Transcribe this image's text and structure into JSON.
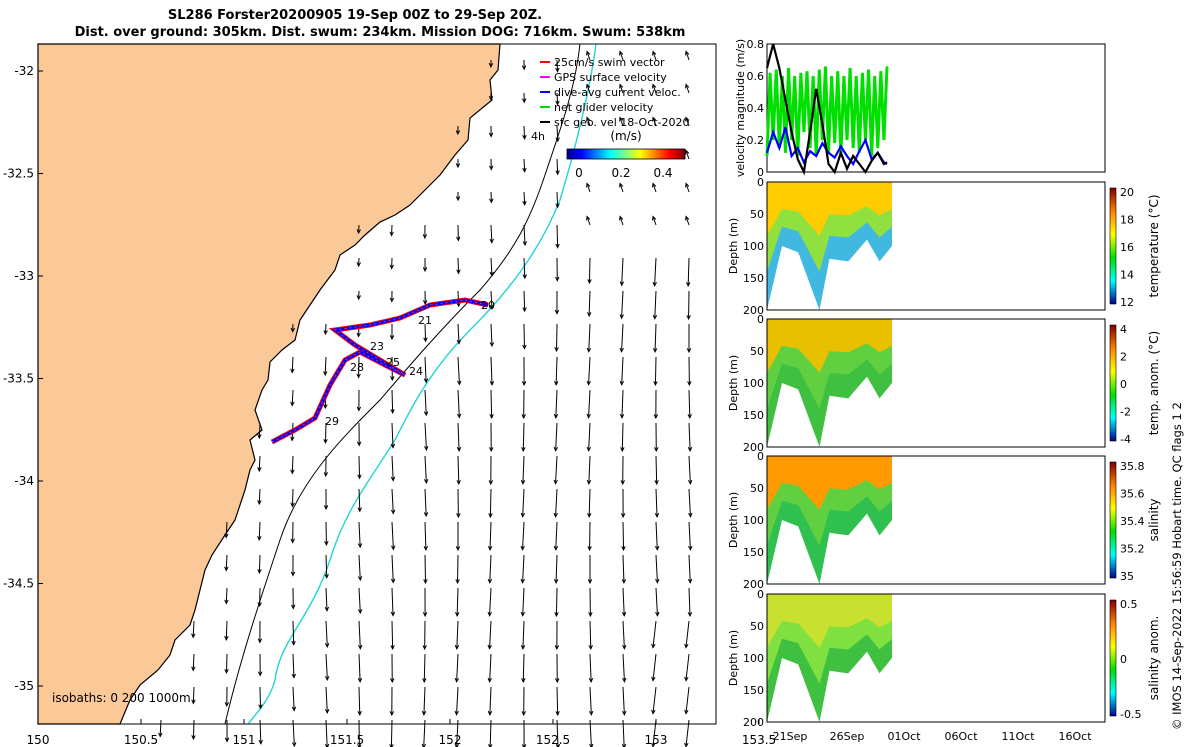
{
  "title_line1": "SL286 Forster20200905 19-Sep 00Z to 29-Sep 20Z.",
  "title_line2": "Dist. over ground: 305km. Dist. swum: 234km. Mission DOG: 716km. Swum: 538km",
  "footer": "© IMOS 14-Sep-2022 15:56:59 Hobart time. QC flags 1  2",
  "map": {
    "legend": [
      {
        "label": "25cm/s swim vector",
        "color": "#ff0000"
      },
      {
        "label": "GPS surface velocity",
        "color": "#ff00ff"
      },
      {
        "label": "dive-avg current veloc.",
        "color": "#0000ff"
      },
      {
        "label": "net glider velocity",
        "color": "#00dd00"
      },
      {
        "label": "sfc geo. vel 18-Oct-2020",
        "color": "#000000"
      }
    ],
    "vec_ref": "4h",
    "colorbar_title": "(m/s)",
    "colorbar_ticks": [
      "0",
      "0.2",
      "0.4"
    ],
    "isobaths": "isobaths: 0   200  1000m",
    "xticks": [
      "150",
      "150.5",
      "151",
      "151.5",
      "152",
      "152.5",
      "153",
      "153.5"
    ],
    "yticks": [
      "-32",
      "-32.5",
      "-33",
      "-33.5",
      "-34",
      "-34.5",
      "-35"
    ],
    "day_labels": [
      "20",
      "21",
      "23",
      "25",
      "24",
      "28",
      "29"
    ]
  },
  "chart_data": [
    {
      "type": "line",
      "ylabel": "velocity magnitude (m/s)",
      "ylim": [
        0,
        0.8
      ],
      "yticks": [
        "0",
        "0.2",
        "0.4",
        "0.6",
        "0.8"
      ],
      "series": [
        {
          "color": "#00e000",
          "x": [
            0,
            1,
            2,
            3,
            4,
            5,
            6,
            7,
            8,
            9,
            10,
            11,
            12,
            13,
            14,
            15,
            16,
            17,
            18,
            19,
            20,
            21,
            22,
            23,
            24,
            25,
            26,
            27,
            28,
            29,
            30,
            31,
            32,
            33,
            34,
            35,
            36,
            37,
            38,
            39
          ],
          "values": [
            0.1,
            0.62,
            0.2,
            0.64,
            0.15,
            0.6,
            0.12,
            0.65,
            0.2,
            0.6,
            0.1,
            0.62,
            0.25,
            0.63,
            0.15,
            0.6,
            0.1,
            0.64,
            0.2,
            0.66,
            0.12,
            0.6,
            0.18,
            0.63,
            0.1,
            0.6,
            0.2,
            0.65,
            0.15,
            0.6,
            0.12,
            0.62,
            0.2,
            0.64,
            0.1,
            0.6,
            0.15,
            0.63,
            0.2,
            0.66
          ]
        },
        {
          "color": "#0000ff",
          "x": [
            0,
            2,
            4,
            6,
            8,
            10,
            12,
            14,
            16,
            18,
            20,
            22,
            24,
            26,
            28,
            30,
            32,
            34,
            36,
            38,
            39
          ],
          "values": [
            0.12,
            0.25,
            0.15,
            0.28,
            0.1,
            0.15,
            0.06,
            0.13,
            0.1,
            0.18,
            0.12,
            0.09,
            0.16,
            0.1,
            0.05,
            0.13,
            0.2,
            0.08,
            0.12,
            0.06,
            0.05
          ]
        },
        {
          "color": "#000000",
          "x": [
            0,
            2,
            4,
            6,
            8,
            10,
            12,
            14,
            16,
            18,
            20,
            22,
            24,
            26,
            28,
            30,
            32,
            34,
            36,
            38,
            39
          ],
          "values": [
            0.65,
            0.82,
            0.65,
            0.45,
            0.25,
            0.08,
            0.0,
            0.25,
            0.52,
            0.3,
            0.05,
            0.0,
            0.12,
            0.02,
            0.1,
            0.05,
            0.0,
            0.07,
            0.12,
            0.05,
            0.06
          ]
        }
      ]
    },
    {
      "type": "heatmap",
      "ylabel": "Depth (m)",
      "yticks": [
        "0",
        "50",
        "100",
        "150",
        "200"
      ],
      "colorbar_label": "temperature (°C)",
      "colorbar_ticks": [
        "12",
        "14",
        "16",
        "18",
        "20"
      ]
    },
    {
      "type": "heatmap",
      "ylabel": "Depth (m)",
      "yticks": [
        "0",
        "50",
        "100",
        "150",
        "200"
      ],
      "colorbar_label": "temp. anom. (°C)",
      "colorbar_ticks": [
        "-4",
        "-2",
        "0",
        "2",
        "4"
      ]
    },
    {
      "type": "heatmap",
      "ylabel": "Depth (m)",
      "yticks": [
        "0",
        "50",
        "100",
        "150",
        "200"
      ],
      "colorbar_label": "salinity",
      "colorbar_ticks": [
        "35",
        "35.2",
        "35.4",
        "35.6",
        "35.8"
      ]
    },
    {
      "type": "heatmap",
      "ylabel": "Depth (m)",
      "yticks": [
        "0",
        "50",
        "100",
        "150",
        "200"
      ],
      "colorbar_label": "salinity anom.",
      "colorbar_ticks": [
        "-0.5",
        "0",
        "0.5"
      ],
      "xticks": [
        "21Sep",
        "26Sep",
        "01Oct",
        "06Oct",
        "11Oct",
        "16Oct"
      ]
    }
  ]
}
